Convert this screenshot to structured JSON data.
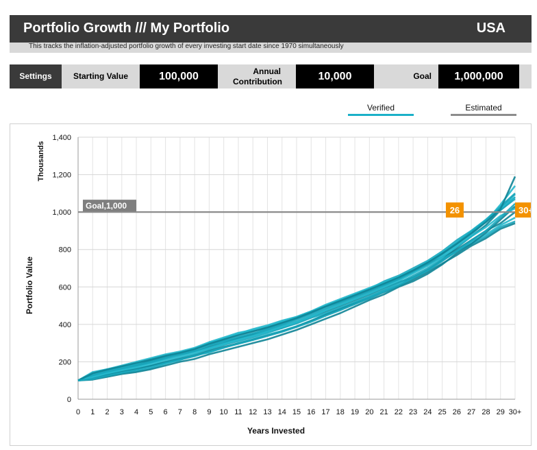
{
  "header": {
    "title": "Portfolio Growth /// My Portfolio",
    "country": "USA",
    "subtitle": "This tracks the inflation-adjusted portfolio growth of every investing start date since 1970 simultaneously"
  },
  "settings": {
    "label": "Settings",
    "starting_value_label": "Starting Value",
    "starting_value": "100,000",
    "annual_contribution_label": "Annual Contribution",
    "annual_contribution": "10,000",
    "goal_label": "Goal",
    "goal": "1,000,000"
  },
  "legend": {
    "verified": "Verified",
    "estimated": "Estimated",
    "verified_color": "#1ab0c8",
    "estimated_color": "#8c8c8c"
  },
  "chart_data": {
    "type": "line",
    "xlabel": "Years Invested",
    "ylabel": "Portfolio Value",
    "yunit_label": "Thousands",
    "xlim": [
      0,
      30
    ],
    "ylim": [
      0,
      1400
    ],
    "y_ticks": [
      0,
      200,
      400,
      600,
      800,
      1000,
      1200,
      1400
    ],
    "y_tick_labels": [
      "0",
      "200",
      "400",
      "600",
      "800",
      "1,000",
      "1,200",
      "1,400"
    ],
    "x_ticks": [
      0,
      1,
      2,
      3,
      4,
      5,
      6,
      7,
      8,
      9,
      10,
      11,
      12,
      13,
      14,
      15,
      16,
      17,
      18,
      19,
      20,
      21,
      22,
      23,
      24,
      25,
      26,
      27,
      28,
      29,
      30
    ],
    "x_tick_labels": [
      "0",
      "1",
      "2",
      "3",
      "4",
      "5",
      "6",
      "7",
      "8",
      "9",
      "10",
      "11",
      "12",
      "13",
      "14",
      "15",
      "16",
      "17",
      "18",
      "19",
      "20",
      "21",
      "22",
      "23",
      "24",
      "25",
      "26",
      "27",
      "28",
      "29",
      "30+"
    ],
    "grid": true,
    "goal_line": {
      "value": 1000,
      "label": "Goal,1,000",
      "color": "#8c8c8c"
    },
    "markers": [
      {
        "x": 26,
        "label": "26",
        "color": "#f39200"
      },
      {
        "x": 30,
        "label": "30+",
        "color": "#f39200"
      }
    ],
    "series_color_range": [
      "#0e7f8c",
      "#3cc2d6"
    ],
    "series": [
      {
        "values": [
          100,
          140,
          160,
          175,
          190,
          210,
          230,
          245,
          265,
          300,
          320,
          345,
          365,
          380,
          410,
          430,
          460,
          495,
          520,
          550,
          580,
          610,
          640,
          680,
          720,
          760,
          800,
          850,
          900,
          940,
          1000
        ]
      },
      {
        "values": [
          100,
          120,
          145,
          165,
          180,
          195,
          220,
          245,
          270,
          290,
          310,
          330,
          350,
          375,
          400,
          430,
          465,
          500,
          525,
          560,
          590,
          630,
          660,
          700,
          740,
          790,
          850,
          900,
          960,
          1030,
          1100
        ]
      },
      {
        "values": [
          100,
          110,
          125,
          140,
          150,
          165,
          190,
          210,
          235,
          250,
          275,
          300,
          320,
          345,
          365,
          390,
          420,
          455,
          485,
          515,
          545,
          580,
          610,
          650,
          690,
          740,
          790,
          840,
          880,
          930,
          970
        ]
      },
      {
        "values": [
          100,
          130,
          155,
          170,
          185,
          205,
          225,
          240,
          255,
          280,
          300,
          325,
          345,
          360,
          380,
          410,
          440,
          470,
          500,
          530,
          560,
          595,
          625,
          650,
          690,
          745,
          810,
          870,
          930,
          1010,
          1080
        ]
      },
      {
        "values": [
          100,
          115,
          135,
          150,
          165,
          180,
          200,
          220,
          240,
          265,
          290,
          310,
          330,
          355,
          380,
          405,
          435,
          460,
          490,
          520,
          550,
          585,
          620,
          660,
          700,
          750,
          790,
          830,
          870,
          920,
          950
        ]
      },
      {
        "values": [
          100,
          135,
          150,
          170,
          190,
          215,
          235,
          250,
          270,
          300,
          325,
          350,
          375,
          395,
          420,
          440,
          470,
          505,
          535,
          565,
          595,
          625,
          655,
          690,
          730,
          770,
          820,
          880,
          950,
          1040,
          1140
        ]
      },
      {
        "values": [
          100,
          105,
          120,
          135,
          145,
          160,
          180,
          200,
          215,
          240,
          260,
          280,
          300,
          320,
          345,
          370,
          400,
          430,
          460,
          495,
          530,
          560,
          600,
          630,
          670,
          720,
          780,
          830,
          890,
          960,
          1030
        ]
      },
      {
        "values": [
          100,
          125,
          140,
          160,
          175,
          195,
          215,
          235,
          255,
          275,
          300,
          320,
          340,
          365,
          390,
          415,
          445,
          480,
          510,
          540,
          570,
          605,
          640,
          680,
          725,
          775,
          830,
          890,
          950,
          1010,
          1070
        ]
      },
      {
        "values": [
          100,
          145,
          160,
          180,
          200,
          220,
          240,
          255,
          275,
          305,
          330,
          355,
          370,
          390,
          415,
          440,
          470,
          500,
          530,
          560,
          590,
          620,
          650,
          690,
          735,
          785,
          840,
          900,
          960,
          1020,
          1080
        ]
      },
      {
        "values": [
          100,
          112,
          130,
          148,
          160,
          178,
          198,
          215,
          232,
          258,
          280,
          298,
          318,
          340,
          362,
          388,
          418,
          450,
          480,
          510,
          540,
          572,
          605,
          640,
          680,
          725,
          770,
          820,
          860,
          910,
          940
        ]
      },
      {
        "values": [
          100,
          128,
          148,
          165,
          182,
          200,
          222,
          242,
          262,
          288,
          310,
          332,
          352,
          372,
          398,
          425,
          455,
          488,
          518,
          548,
          578,
          612,
          645,
          685,
          728,
          780,
          835,
          895,
          955,
          1025,
          1095
        ]
      },
      {
        "values": [
          100,
          118,
          138,
          155,
          170,
          188,
          210,
          228,
          248,
          272,
          295,
          318,
          338,
          360,
          386,
          412,
          442,
          474,
          504,
          534,
          564,
          598,
          632,
          672,
          712,
          760,
          815,
          870,
          920,
          980,
          1020
        ]
      },
      {
        "values": [
          100,
          138,
          158,
          176,
          194,
          212,
          232,
          248,
          268,
          296,
          320,
          342,
          362,
          384,
          408,
          434,
          464,
          496,
          526,
          556,
          586,
          618,
          650,
          688,
          730,
          778,
          830,
          886,
          946,
          1016,
          1190
        ]
      },
      {
        "values": [
          100,
          108,
          126,
          142,
          156,
          172,
          194,
          212,
          230,
          254,
          276,
          296,
          316,
          338,
          360,
          386,
          414,
          446,
          476,
          508,
          540,
          574,
          608,
          648,
          688,
          738,
          792,
          846,
          900,
          970,
          1045
        ]
      }
    ]
  }
}
